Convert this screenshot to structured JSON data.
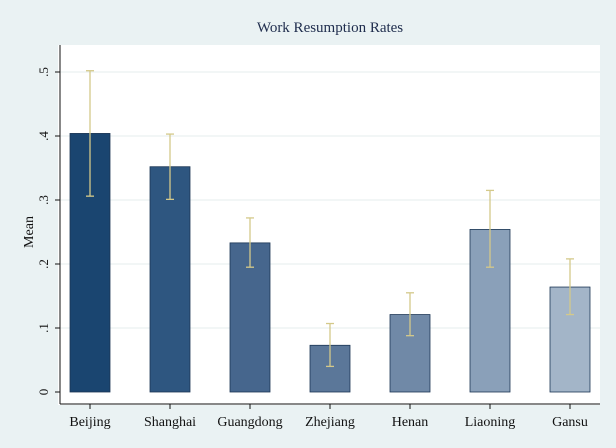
{
  "chart_data": {
    "type": "bar",
    "title": "Work Resumption Rates",
    "xlabel": "",
    "ylabel": "Mean",
    "ylim": [
      0,
      0.5
    ],
    "yticks": [
      0,
      0.1,
      0.2,
      0.3,
      0.4,
      0.5
    ],
    "ytick_labels": [
      "0",
      ".1",
      ".2",
      ".3",
      ".4",
      ".5"
    ],
    "grid": true,
    "legend": "none",
    "categories": [
      "Beijing",
      "Shanghai",
      "Guangdong",
      "Zhejiang",
      "Henan",
      "Liaoning",
      "Gansu"
    ],
    "values": [
      0.404,
      0.352,
      0.233,
      0.073,
      0.121,
      0.254,
      0.164
    ],
    "ci_low": [
      0.306,
      0.301,
      0.195,
      0.04,
      0.088,
      0.195,
      0.121
    ],
    "ci_high": [
      0.502,
      0.403,
      0.272,
      0.107,
      0.155,
      0.315,
      0.208
    ],
    "colors": [
      "#1a4570",
      "#2e5680",
      "#46668d",
      "#5b7799",
      "#7089a7",
      "#8aa0b9",
      "#a3b5c8"
    ],
    "errorbar_color": "#d4c98a"
  }
}
